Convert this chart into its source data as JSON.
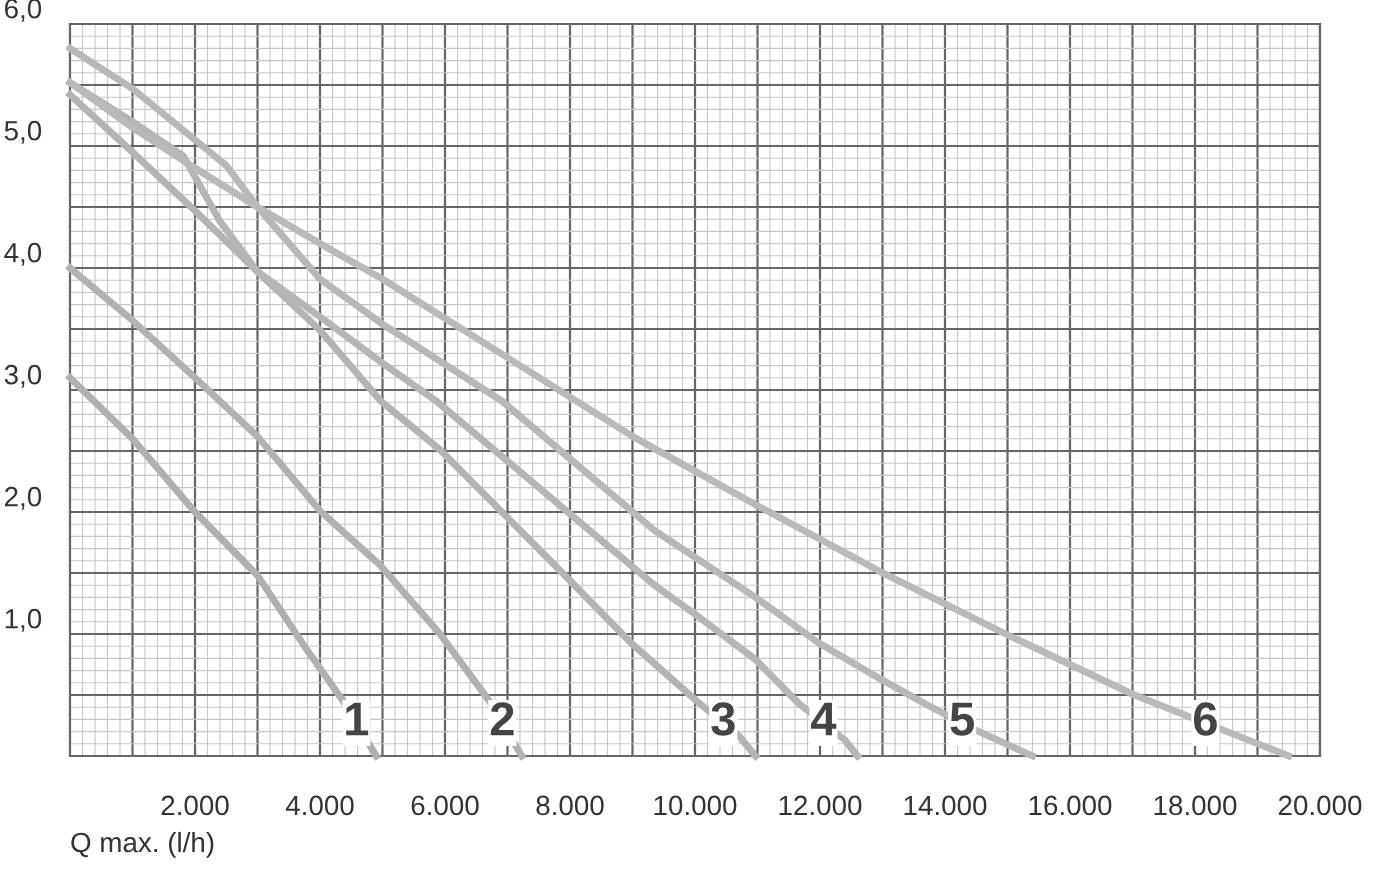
{
  "chart_data": {
    "type": "line",
    "xlabel": "Q max. (l/h)",
    "xlim": [
      0,
      20000
    ],
    "ylim": [
      0,
      6.0
    ],
    "xticks": [
      {
        "value": 1000,
        "label": null
      },
      {
        "value": 2000,
        "label": "2.000"
      },
      {
        "value": 3000,
        "label": null
      },
      {
        "value": 4000,
        "label": "4.000"
      },
      {
        "value": 5000,
        "label": null
      },
      {
        "value": 6000,
        "label": "6.000"
      },
      {
        "value": 7000,
        "label": null
      },
      {
        "value": 8000,
        "label": "8.000"
      },
      {
        "value": 9000,
        "label": null
      },
      {
        "value": 10000,
        "label": "10.000"
      },
      {
        "value": 11000,
        "label": null
      },
      {
        "value": 12000,
        "label": "12.000"
      },
      {
        "value": 13000,
        "label": null
      },
      {
        "value": 14000,
        "label": "14.000"
      },
      {
        "value": 15000,
        "label": null
      },
      {
        "value": 16000,
        "label": "16.000"
      },
      {
        "value": 17000,
        "label": null
      },
      {
        "value": 18000,
        "label": "18.000"
      },
      {
        "value": 19000,
        "label": null
      },
      {
        "value": 20000,
        "label": "20.000"
      }
    ],
    "yticks": [
      {
        "value": 0.5,
        "label": null
      },
      {
        "value": 1.0,
        "label": "1,0"
      },
      {
        "value": 1.5,
        "label": null
      },
      {
        "value": 2.0,
        "label": "2,0"
      },
      {
        "value": 2.5,
        "label": null
      },
      {
        "value": 3.0,
        "label": "3,0"
      },
      {
        "value": 3.5,
        "label": null
      },
      {
        "value": 4.0,
        "label": "4,0"
      },
      {
        "value": 4.5,
        "label": null
      },
      {
        "value": 5.0,
        "label": "5,0"
      },
      {
        "value": 5.5,
        "label": null
      },
      {
        "value": 6.0,
        "label": "6,0"
      }
    ],
    "grid": true,
    "marker": "none",
    "line_style": "solid",
    "series": [
      {
        "name": "1",
        "color": "#b0b0b0",
        "x": [
          0,
          1000,
          2000,
          3000,
          3750,
          4370,
          4900
        ],
        "values": [
          3.1,
          2.6,
          2.0,
          1.48,
          0.9,
          0.45,
          0
        ]
      },
      {
        "name": "2",
        "color": "#b2b2b2",
        "x": [
          0,
          1000,
          2000,
          3000,
          4000,
          4970,
          5920,
          6710,
          7230
        ],
        "values": [
          4.0,
          3.57,
          3.1,
          2.62,
          2.01,
          1.56,
          1.0,
          0.45,
          0
        ]
      },
      {
        "name": "3",
        "color": "#b4b4b4",
        "x": [
          0,
          1000,
          2000,
          3000,
          4000,
          4970,
          5920,
          7920,
          8970,
          10030,
          10710,
          10970
        ],
        "values": [
          5.42,
          4.95,
          4.47,
          3.97,
          3.49,
          2.91,
          2.51,
          1.48,
          0.93,
          0.45,
          0.16,
          0
        ]
      },
      {
        "name": "4",
        "color": "#b6b6b6",
        "x": [
          0,
          1000,
          1810,
          2020,
          2390,
          3000,
          4000,
          5000,
          5860,
          9350,
          9980,
          10970,
          11660,
          12400,
          12600
        ],
        "values": [
          5.52,
          5.2,
          4.92,
          4.73,
          4.39,
          3.97,
          3.6,
          3.22,
          2.91,
          1.4,
          1.17,
          0.79,
          0.43,
          0.13,
          0
        ]
      },
      {
        "name": "5",
        "color": "#b8b8b8",
        "x": [
          0,
          1000,
          2000,
          2500,
          3000,
          4000,
          5000,
          6910,
          9350,
          10970,
          11970,
          12970,
          13710,
          14500,
          15400
        ],
        "values": [
          5.8,
          5.47,
          5.05,
          4.84,
          4.5,
          3.91,
          3.54,
          2.91,
          1.85,
          1.3,
          0.93,
          0.63,
          0.42,
          0.21,
          0
        ]
      },
      {
        "name": "6",
        "color": "#bababa",
        "x": [
          0,
          1000,
          2000,
          3000,
          4000,
          5000,
          9000,
          10970,
          12970,
          14970,
          17030,
          19500
        ],
        "values": [
          5.52,
          5.15,
          4.82,
          4.5,
          4.2,
          3.91,
          2.62,
          2.06,
          1.51,
          1.0,
          0.5,
          0
        ]
      }
    ]
  }
}
